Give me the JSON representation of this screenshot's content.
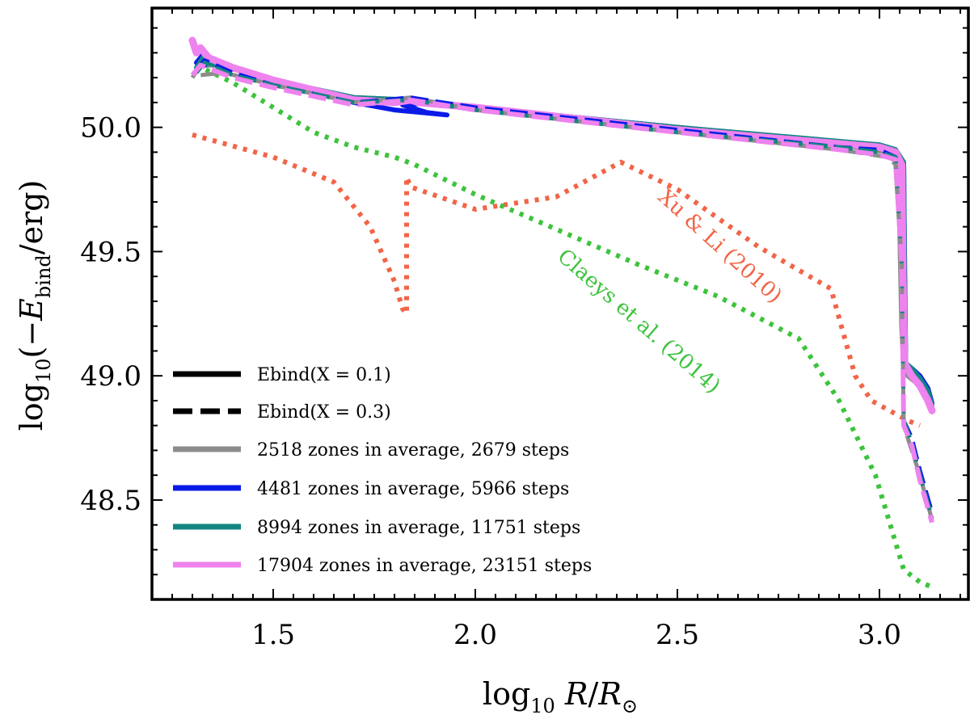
{
  "chart_data": {
    "type": "line",
    "xlabel": "log10 R/R⊙",
    "ylabel": "log10(−Ebind/erg)",
    "xlim": [
      1.2,
      3.22
    ],
    "ylim": [
      48.1,
      50.48
    ],
    "xticks": [
      1.5,
      2.0,
      2.5,
      3.0
    ],
    "xtick_labels": [
      "1.5",
      "2.0",
      "2.5",
      "3.0"
    ],
    "yticks": [
      48.5,
      49.0,
      49.5,
      50.0
    ],
    "ytick_labels": [
      "48.5",
      "49.0",
      "49.5",
      "50.0"
    ],
    "colors": {
      "gray": "#8c8c8c",
      "blue": "#0a1be8",
      "teal": "#128582",
      "violet": "#ee82ee",
      "xuli": "#f26447",
      "claeys": "#3dc33d"
    },
    "legend": [
      {
        "label": "Ebind(X = 0.1)",
        "style": "solid",
        "color": "#000000"
      },
      {
        "label": "Ebind(X = 0.3)",
        "style": "dashed",
        "color": "#000000"
      },
      {
        "label": "2518 zones in average, 2679 steps",
        "style": "solid",
        "color": "#8c8c8c"
      },
      {
        "label": "4481 zones in average, 5966 steps",
        "style": "solid",
        "color": "#0a1be8"
      },
      {
        "label": "8994 zones in average, 11751 steps",
        "style": "solid",
        "color": "#128582"
      },
      {
        "label": "17904 zones in average, 23151 steps",
        "style": "solid",
        "color": "#ee82ee"
      }
    ],
    "annotations": [
      {
        "text": "Xu & Li (2010)",
        "color": "#f26447"
      },
      {
        "text": "Claeys et al. (2014)",
        "color": "#3dc33d"
      }
    ],
    "series": [
      {
        "name": "Xu & Li (2010)",
        "style": "dotted",
        "color": "#f26447",
        "x": [
          1.3,
          1.5,
          1.65,
          1.74,
          1.8,
          1.82,
          1.83,
          1.83,
          1.84,
          2.0,
          2.2,
          2.36,
          2.5,
          2.7,
          2.88,
          2.94,
          2.98,
          3.07,
          3.1
        ],
        "y": [
          49.97,
          49.88,
          49.78,
          49.6,
          49.38,
          49.27,
          49.25,
          49.8,
          49.76,
          49.67,
          49.72,
          49.86,
          49.75,
          49.52,
          49.35,
          49.0,
          48.9,
          48.82,
          48.8
        ]
      },
      {
        "name": "Claeys et al. (2014)",
        "style": "dotted",
        "color": "#3dc33d",
        "x": [
          1.31,
          1.4,
          1.5,
          1.6,
          1.7,
          1.8,
          1.85,
          2.0,
          2.2,
          2.4,
          2.6,
          2.8,
          2.9,
          2.99,
          3.06,
          3.1,
          3.13
        ],
        "y": [
          50.25,
          50.18,
          50.08,
          49.98,
          49.92,
          49.88,
          49.85,
          49.73,
          49.59,
          49.45,
          49.32,
          49.15,
          48.9,
          48.6,
          48.22,
          48.17,
          48.15
        ]
      },
      {
        "name": "2518 zones X=0.1",
        "style": "solid",
        "color": "#8c8c8c",
        "width": 6,
        "x": [
          1.31,
          1.33,
          1.33,
          1.38,
          1.5,
          1.7,
          1.84,
          2.0,
          2.5,
          2.9,
          3.02,
          3.04,
          3.05,
          3.055,
          3.06,
          3.07,
          3.1,
          3.12
        ],
        "y": [
          50.23,
          50.28,
          50.25,
          50.25,
          50.19,
          50.12,
          50.11,
          50.08,
          50.0,
          49.93,
          49.9,
          49.86,
          49.6,
          49.2,
          49.03,
          49.0,
          48.96,
          48.91
        ]
      },
      {
        "name": "4481 zones X=0.1",
        "style": "solid",
        "color": "#0a1be8",
        "width": 6,
        "x": [
          1.31,
          1.33,
          1.33,
          1.35,
          1.4,
          1.5,
          1.6,
          1.7,
          1.8,
          1.93,
          1.88,
          1.82,
          1.9,
          2.0,
          2.5,
          2.9,
          3.0,
          3.04,
          3.06,
          3.062,
          3.065,
          3.08,
          3.1,
          3.12,
          3.13
        ],
        "y": [
          50.26,
          50.3,
          50.25,
          50.27,
          50.24,
          50.18,
          50.14,
          50.1,
          50.07,
          50.05,
          50.06,
          50.09,
          50.1,
          50.08,
          50.0,
          49.94,
          49.93,
          49.91,
          49.85,
          49.5,
          49.05,
          49.03,
          49.0,
          48.95,
          48.89
        ]
      },
      {
        "name": "8994 zones X=0.1",
        "style": "solid",
        "color": "#128582",
        "width": 6,
        "x": [
          1.31,
          1.33,
          1.33,
          1.4,
          1.5,
          1.7,
          1.84,
          2.0,
          2.5,
          3.0,
          3.04,
          3.06,
          3.062,
          3.065,
          3.08,
          3.1,
          3.12,
          3.13
        ],
        "y": [
          50.24,
          50.29,
          50.26,
          50.24,
          50.19,
          50.12,
          50.11,
          50.08,
          50.0,
          49.93,
          49.91,
          49.86,
          49.4,
          49.05,
          49.03,
          48.99,
          48.94,
          48.88
        ]
      },
      {
        "name": "17904 zones X=0.1",
        "style": "solid",
        "color": "#ee82ee",
        "width": 9,
        "x": [
          1.3,
          1.31,
          1.32,
          1.34,
          1.4,
          1.5,
          1.6,
          1.7,
          1.8,
          1.84,
          1.86,
          2.0,
          2.5,
          3.0,
          3.04,
          3.055,
          3.058,
          3.062,
          3.08,
          3.1,
          3.12,
          3.13
        ],
        "y": [
          50.35,
          50.3,
          50.32,
          50.28,
          50.24,
          50.19,
          50.15,
          50.11,
          50.1,
          50.11,
          50.1,
          50.08,
          49.99,
          49.92,
          49.9,
          49.85,
          49.4,
          49.05,
          49.0,
          48.96,
          48.9,
          48.86
        ]
      },
      {
        "name": "2518 zones X=0.3",
        "style": "dashed",
        "color": "#8c8c8c",
        "width": 5,
        "x": [
          1.3,
          1.32,
          1.32,
          1.38,
          1.5,
          1.7,
          1.84,
          2.0,
          2.5,
          2.9,
          3.02,
          3.04,
          3.055,
          3.06,
          3.08,
          3.1,
          3.13
        ],
        "y": [
          50.2,
          50.25,
          50.21,
          50.22,
          50.17,
          50.1,
          50.12,
          50.07,
          49.98,
          49.91,
          49.88,
          49.85,
          49.45,
          48.8,
          48.7,
          48.6,
          48.42
        ]
      },
      {
        "name": "4481 zones X=0.3",
        "style": "dashed",
        "color": "#0a1be8",
        "width": 5,
        "x": [
          1.31,
          1.33,
          1.4,
          1.5,
          1.7,
          1.84,
          2.0,
          2.5,
          2.9,
          3.0,
          3.04,
          3.055,
          3.06,
          3.08,
          3.1,
          3.13
        ],
        "y": [
          50.23,
          50.27,
          50.22,
          50.17,
          50.1,
          50.12,
          50.08,
          49.99,
          49.92,
          49.91,
          49.88,
          49.45,
          48.82,
          48.75,
          48.62,
          48.45
        ]
      },
      {
        "name": "8994 zones X=0.3",
        "style": "dashed",
        "color": "#128582",
        "width": 5,
        "x": [
          1.31,
          1.33,
          1.4,
          1.5,
          1.7,
          1.84,
          2.0,
          2.5,
          2.9,
          3.0,
          3.04,
          3.055,
          3.06,
          3.08,
          3.1,
          3.13
        ],
        "y": [
          50.22,
          50.26,
          50.21,
          50.17,
          50.1,
          50.11,
          50.07,
          49.98,
          49.92,
          49.9,
          49.88,
          49.45,
          48.82,
          48.73,
          48.6,
          48.43
        ]
      },
      {
        "name": "17904 zones X=0.3",
        "style": "dashed",
        "color": "#ee82ee",
        "width": 6,
        "x": [
          1.3,
          1.32,
          1.4,
          1.5,
          1.7,
          1.84,
          2.0,
          2.5,
          2.9,
          3.0,
          3.04,
          3.055,
          3.06,
          3.08,
          3.1,
          3.13
        ],
        "y": [
          50.21,
          50.25,
          50.2,
          50.16,
          50.09,
          50.11,
          50.07,
          49.98,
          49.91,
          49.89,
          49.87,
          49.45,
          48.8,
          48.72,
          48.58,
          48.41
        ]
      }
    ]
  }
}
